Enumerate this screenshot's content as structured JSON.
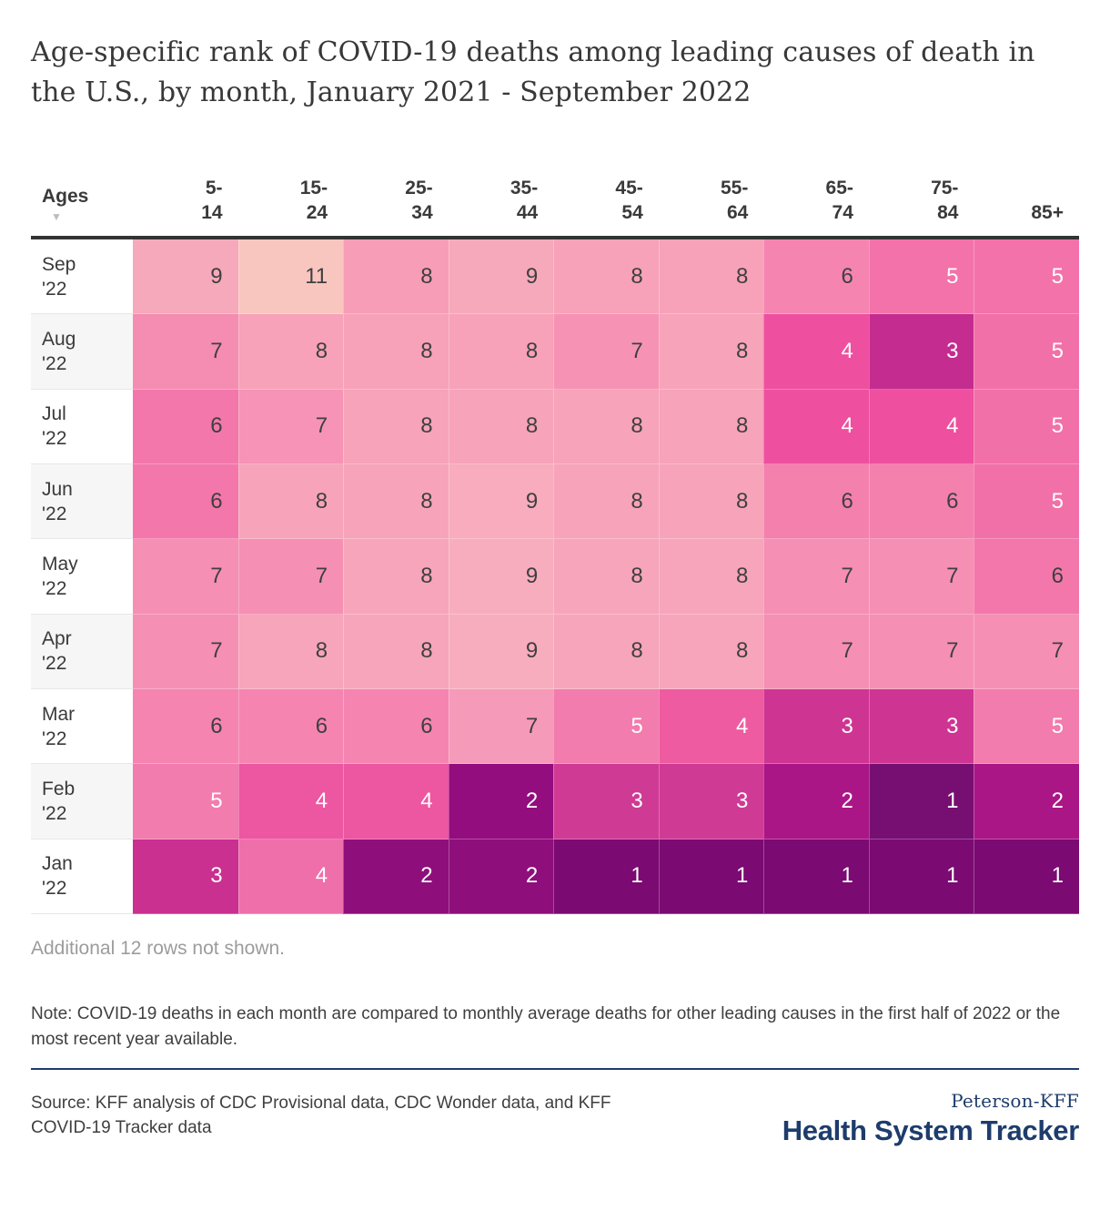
{
  "title": "Age-specific rank of COVID-19 deaths among leading causes of death in the U.S., by month, January 2021 - September 2022",
  "table": {
    "ages_label": "Ages",
    "sort_icon": "▼",
    "columns_display": [
      "5-\n14",
      "15-\n24",
      "25-\n34",
      "35-\n44",
      "45-\n54",
      "55-\n64",
      "65-\n74",
      "75-\n84",
      "85+"
    ]
  },
  "chart_data": {
    "type": "heatmap",
    "title": "Age-specific rank of COVID-19 deaths among leading causes of death in the U.S., by month, January 2021 - September 2022",
    "x_categories": [
      "5-14",
      "15-24",
      "25-34",
      "35-44",
      "45-54",
      "55-64",
      "65-74",
      "75-84",
      "85+"
    ],
    "y_categories": [
      "Sep '22",
      "Aug '22",
      "Jul '22",
      "Jun '22",
      "May '22",
      "Apr '22",
      "Mar '22",
      "Feb '22",
      "Jan '22"
    ],
    "y_months": [
      "Sep",
      "Aug",
      "Jul",
      "Jun",
      "May",
      "Apr",
      "Mar",
      "Feb",
      "Jan"
    ],
    "y_years": [
      "'22",
      "'22",
      "'22",
      "'22",
      "'22",
      "'22",
      "'22",
      "'22",
      "'22"
    ],
    "values": [
      [
        9,
        11,
        8,
        9,
        8,
        8,
        6,
        5,
        5
      ],
      [
        7,
        8,
        8,
        8,
        7,
        8,
        4,
        3,
        5
      ],
      [
        6,
        7,
        8,
        8,
        8,
        8,
        4,
        4,
        5
      ],
      [
        6,
        8,
        8,
        9,
        8,
        8,
        6,
        6,
        5
      ],
      [
        7,
        7,
        8,
        9,
        8,
        8,
        7,
        7,
        6
      ],
      [
        7,
        8,
        8,
        9,
        8,
        8,
        7,
        7,
        7
      ],
      [
        6,
        6,
        6,
        7,
        5,
        4,
        3,
        3,
        5
      ],
      [
        5,
        4,
        4,
        2,
        3,
        3,
        2,
        1,
        2
      ],
      [
        3,
        4,
        2,
        2,
        1,
        1,
        1,
        1,
        1
      ]
    ],
    "cell_colors": [
      [
        "#F6A9BA",
        "#F9C6BF",
        "#F79DB7",
        "#F6A9BA",
        "#F7A2B9",
        "#F7A2B9",
        "#F585B0",
        "#F372AA",
        "#F372AA"
      ],
      [
        "#F58CB2",
        "#F7A2B9",
        "#F7A2B9",
        "#F7A2B9",
        "#F693B5",
        "#F7A4BA",
        "#EE4F9F",
        "#C52C90",
        "#F270A8"
      ],
      [
        "#F377AB",
        "#F693B6",
        "#F7A3BA",
        "#F7A3BA",
        "#F7A3BA",
        "#F7A3BA",
        "#EE4F9F",
        "#EE4F9F",
        "#F270A8"
      ],
      [
        "#F377AB",
        "#F7A4BA",
        "#F7A4BA",
        "#F8ACBD",
        "#F7A4BA",
        "#F7A4BA",
        "#F480AE",
        "#F480AE",
        "#F270A8"
      ],
      [
        "#F68FB4",
        "#F68FB4",
        "#F7A5BB",
        "#F8ADBE",
        "#F7A5BB",
        "#F7A5BB",
        "#F68FB4",
        "#F68FB4",
        "#F377AB"
      ],
      [
        "#F68FB4",
        "#F7A5BB",
        "#F7A5BB",
        "#F8ADBE",
        "#F7A5BB",
        "#F7A5BB",
        "#F68FB4",
        "#F68FB4",
        "#F68FB4"
      ],
      [
        "#F584B1",
        "#F584B1",
        "#F584B1",
        "#F69AB9",
        "#F27CAD",
        "#EF5BA1",
        "#CE3593",
        "#CE3593",
        "#F27CAD"
      ],
      [
        "#F27CAD",
        "#ED56A0",
        "#ED56A0",
        "#930D7E",
        "#CF3A94",
        "#CF3A94",
        "#AA1686",
        "#770F73",
        "#AA1686"
      ],
      [
        "#C93090",
        "#EE6FAA",
        "#8E0F7B",
        "#8E0F7B",
        "#7B0A72",
        "#7B0A72",
        "#7B0A72",
        "#7B0A72",
        "#7B0A72"
      ]
    ],
    "text_color_dark": "#3F3F3F",
    "text_color_light": "#FFFFFF",
    "white_text_max_value": 5,
    "legend_position": "none",
    "grid": false
  },
  "footer": {
    "additional_note": "Additional 12 rows not shown.",
    "note": "Note: COVID-19 deaths in each month are compared to monthly average deaths for other leading causes in the first half of 2022 or the most recent year available.",
    "source": "Source: KFF analysis of CDC Provisional data, CDC Wonder data, and KFF COVID-19 Tracker data",
    "logo_top": "Peterson-KFF",
    "logo_main": "Health System Tracker",
    "logo_color": "#1E3C6C"
  }
}
